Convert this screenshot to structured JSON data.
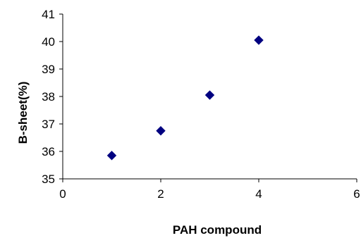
{
  "chart_data": {
    "type": "scatter",
    "title": "",
    "xlabel": "PAH compound",
    "ylabel": "B-sheet(%)",
    "xlim": [
      0,
      6
    ],
    "ylim": [
      35,
      41
    ],
    "x_ticks": [
      0,
      2,
      4,
      6
    ],
    "y_ticks": [
      35,
      36,
      37,
      38,
      39,
      40,
      41
    ],
    "grid": false,
    "legend": "none",
    "marker": "diamond",
    "series": [
      {
        "color": "#000080",
        "points": [
          {
            "x": 1,
            "y": 35.85
          },
          {
            "x": 2,
            "y": 36.75
          },
          {
            "x": 3,
            "y": 38.05
          },
          {
            "x": 4,
            "y": 40.05
          }
        ]
      }
    ]
  }
}
